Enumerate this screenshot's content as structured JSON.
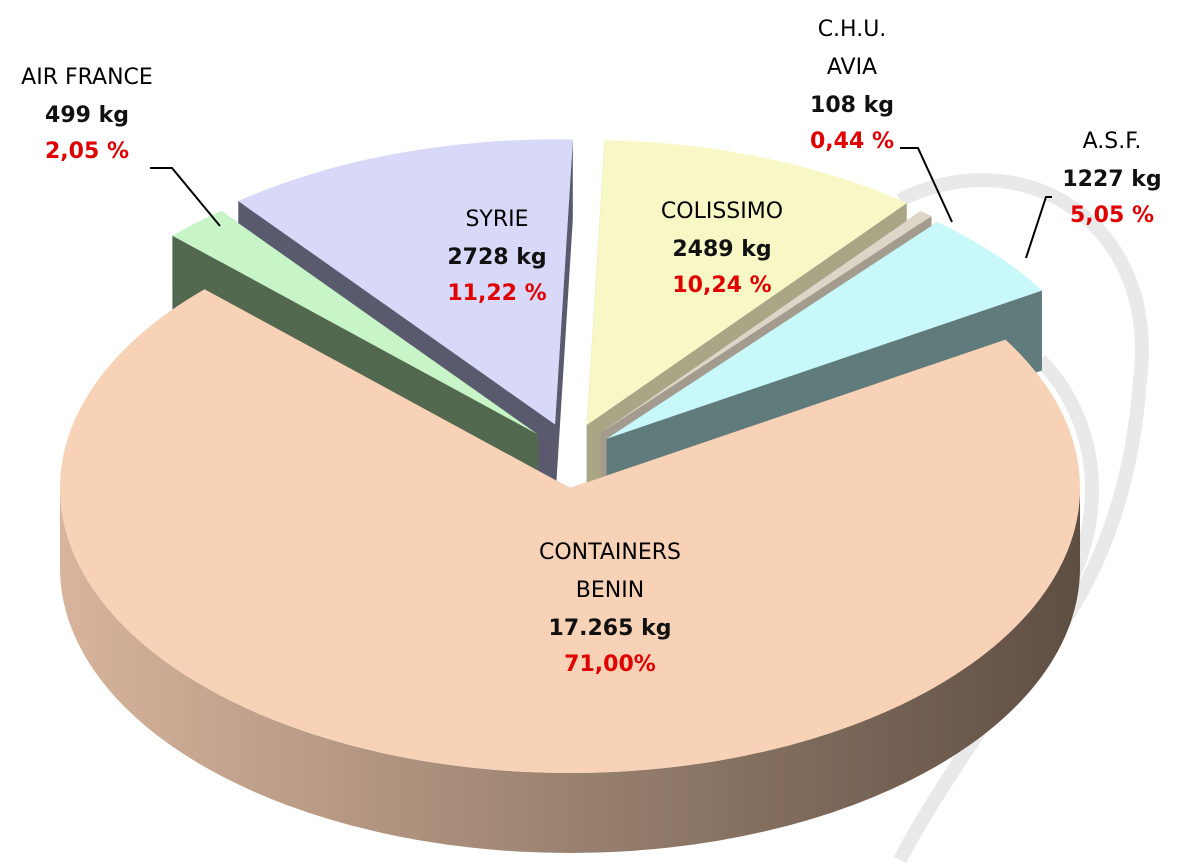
{
  "chart_data": {
    "type": "pie3d",
    "categories": [
      [
        "COLISSIMO"
      ],
      [
        "C.H.U.",
        "AVIA"
      ],
      [
        "A.S.F."
      ],
      [
        "CONTAINERS",
        "BENIN"
      ],
      [
        "AIR FRANCE"
      ],
      [
        "SYRIE"
      ]
    ],
    "values": [
      10.24,
      0.44,
      5.05,
      71.0,
      2.05,
      11.22
    ],
    "value_labels": [
      "10,24 %",
      "0,44 %",
      "5,05 %",
      "71,00%",
      "2,05 %",
      "11,22 %"
    ],
    "weight_labels": [
      "2489 kg",
      "108 kg",
      "1227 kg",
      "17.265 kg",
      "499 kg",
      "2728 kg"
    ],
    "colors": [
      "#f8f7c6",
      "#ddd6c8",
      "#c8f8fa",
      "#f7d2b6",
      "#c8f5c8",
      "#d8d8f8"
    ],
    "side_colors": [
      "#a8a684",
      "#a39c8e",
      "#5f7b7b",
      "#7a6656",
      "#53694f",
      "#5a5a6e"
    ]
  }
}
